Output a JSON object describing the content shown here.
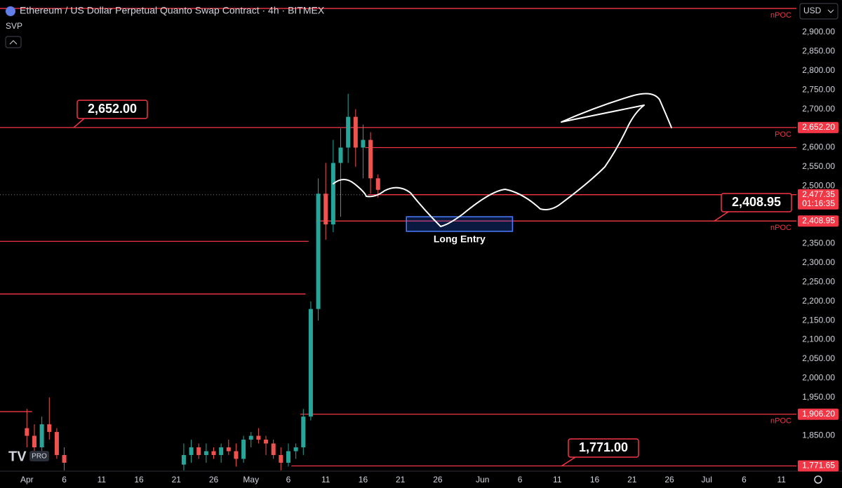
{
  "chart_data": {
    "type": "candlestick",
    "title": "Ethereum / US Dollar Perpetual Quanto Swap Contract · 4h · BITMEX",
    "indicator": "SVP",
    "currency": "USD",
    "badge": "PRO",
    "xlim": [
      -3.6,
      103
    ],
    "xticks": [
      {
        "value": 0,
        "label": "Apr"
      },
      {
        "value": 5,
        "label": "6"
      },
      {
        "value": 10,
        "label": "11"
      },
      {
        "value": 15,
        "label": "16"
      },
      {
        "value": 20,
        "label": "21"
      },
      {
        "value": 25,
        "label": "26"
      },
      {
        "value": 30,
        "label": "May"
      },
      {
        "value": 35,
        "label": "6"
      },
      {
        "value": 40,
        "label": "11"
      },
      {
        "value": 45,
        "label": "16"
      },
      {
        "value": 50,
        "label": "21"
      },
      {
        "value": 55,
        "label": "26"
      },
      {
        "value": 61,
        "label": "Jun"
      },
      {
        "value": 66,
        "label": "6"
      },
      {
        "value": 71,
        "label": "11"
      },
      {
        "value": 76,
        "label": "16"
      },
      {
        "value": 81,
        "label": "21"
      },
      {
        "value": 86,
        "label": "26"
      },
      {
        "value": 91,
        "label": "Jul"
      },
      {
        "value": 96,
        "label": "6"
      },
      {
        "value": 101,
        "label": "11"
      }
    ],
    "ylim": [
      1758,
      2984
    ],
    "yticks": [
      {
        "value": 2900,
        "label": "2,900.00"
      },
      {
        "value": 2850,
        "label": "2,850.00"
      },
      {
        "value": 2800,
        "label": "2,800.00"
      },
      {
        "value": 2750,
        "label": "2,750.00"
      },
      {
        "value": 2700,
        "label": "2,700.00"
      },
      {
        "value": 2600,
        "label": "2,600.00"
      },
      {
        "value": 2550,
        "label": "2,550.00"
      },
      {
        "value": 2500,
        "label": "2,500.00"
      },
      {
        "value": 2350,
        "label": "2,350.00"
      },
      {
        "value": 2300,
        "label": "2,300.00"
      },
      {
        "value": 2250,
        "label": "2,250.00"
      },
      {
        "value": 2200,
        "label": "2,200.00"
      },
      {
        "value": 2150,
        "label": "2,150.00"
      },
      {
        "value": 2100,
        "label": "2,100.00"
      },
      {
        "value": 2050,
        "label": "2,050.00"
      },
      {
        "value": 2000,
        "label": "2,000.00"
      },
      {
        "value": 1950,
        "label": "1,950.00"
      },
      {
        "value": 1850,
        "label": "1,850.00"
      }
    ],
    "x": [
      0,
      1,
      2,
      3,
      4,
      5,
      21,
      22,
      23,
      24,
      25,
      26,
      27,
      28,
      29,
      30,
      31,
      32,
      33,
      34,
      35,
      36,
      37,
      38,
      39,
      40,
      41,
      42,
      43,
      44,
      45,
      46,
      47
    ],
    "open": [
      1870,
      1850,
      1820,
      1880,
      1860,
      1800,
      1775,
      1800,
      1820,
      1800,
      1810,
      1800,
      1820,
      1810,
      1790,
      1840,
      1850,
      1840,
      1830,
      1800,
      1780,
      1810,
      1820,
      1900,
      2180,
      2480,
      2400,
      2560,
      2600,
      2680,
      2600,
      2620,
      2520
    ],
    "high": [
      1920,
      1880,
      1900,
      1950,
      1870,
      1820,
      1830,
      1840,
      1830,
      1830,
      1820,
      1830,
      1840,
      1830,
      1850,
      1860,
      1870,
      1850,
      1840,
      1820,
      1830,
      1830,
      1920,
      2200,
      2520,
      2560,
      2620,
      2650,
      2740,
      2700,
      2660,
      2640,
      2530
    ],
    "low": [
      1820,
      1800,
      1800,
      1840,
      1790,
      1760,
      1760,
      1780,
      1790,
      1780,
      1790,
      1780,
      1800,
      1770,
      1780,
      1820,
      1830,
      1800,
      1790,
      1760,
      1770,
      1790,
      1800,
      1890,
      2150,
      2360,
      2380,
      2420,
      2560,
      2550,
      2520,
      2480,
      2470
    ],
    "close": [
      1850,
      1820,
      1880,
      1860,
      1800,
      1780,
      1800,
      1820,
      1800,
      1810,
      1800,
      1820,
      1810,
      1790,
      1840,
      1850,
      1840,
      1830,
      1800,
      1780,
      1810,
      1820,
      1900,
      2180,
      2480,
      2400,
      2560,
      2600,
      2680,
      2600,
      2620,
      2520,
      2490
    ],
    "up_color": "#26a69a",
    "down_color": "#ef5350",
    "level_color": "#f23645",
    "levels": [
      {
        "price": 2962,
        "from": -3.6,
        "tag": "nPOC"
      },
      {
        "price": 2652.2,
        "from": -3.6,
        "tag": "POC",
        "label": "2,652.20"
      },
      {
        "price": 2600,
        "from": 45.3
      },
      {
        "price": 2408.95,
        "from": 38.7,
        "tag": "nPOC",
        "label": "2,408.95"
      },
      {
        "price": 2356,
        "from": -3.6,
        "to": 37.7
      },
      {
        "price": 2219,
        "from": -3.6,
        "to": 37.3
      },
      {
        "price": 1913,
        "from": -3.6,
        "to": 0.7
      },
      {
        "price": 1906.2,
        "from": 36.6,
        "tag": "nPOC",
        "label": "1,906.20"
      },
      {
        "price": 1771.65,
        "from": 35.4,
        "label": "1,771.65"
      }
    ],
    "last_price": {
      "value": 2477.35,
      "label": "2,477.35",
      "countdown": "01:16:35",
      "from": 45.7
    },
    "callouts": [
      {
        "value": 2652,
        "label": "2,652.00"
      },
      {
        "value": 2408.95,
        "label": "2,408.95"
      },
      {
        "value": 1771,
        "label": "1,771.00"
      }
    ],
    "entry_box": {
      "low": 2382,
      "high": 2420,
      "from": 50.8,
      "to": 65,
      "label": "Long Entry"
    }
  }
}
